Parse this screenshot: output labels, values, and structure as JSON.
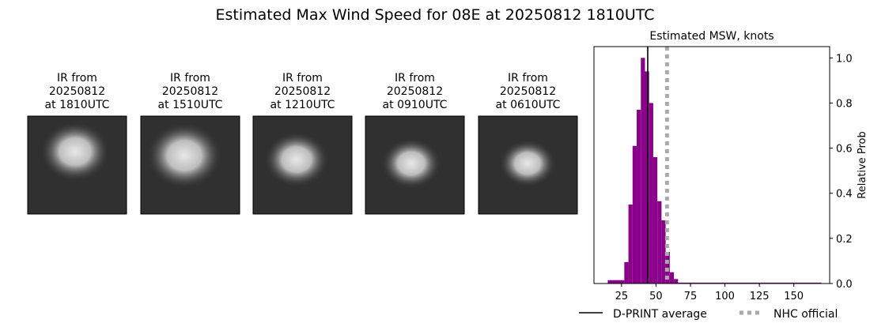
{
  "title": "Estimated Max Wind Speed for 08E at 20250812 1810UTC",
  "panels": [
    {
      "lines": [
        "IR from",
        "20250812",
        "at 1810UTC"
      ]
    },
    {
      "lines": [
        "IR from",
        "20250812",
        "at 1510UTC"
      ]
    },
    {
      "lines": [
        "IR from",
        "20250812",
        "at 1210UTC"
      ]
    },
    {
      "lines": [
        "IR from",
        "20250812",
        "at 0910UTC"
      ]
    },
    {
      "lines": [
        "IR from",
        "20250812",
        "at 0610UTC"
      ]
    }
  ],
  "chart_data": {
    "type": "histogram",
    "title": "Estimated MSW, knots",
    "ylabel": "Relative Prob",
    "bins": [
      15,
      27,
      30,
      33,
      36,
      39,
      42,
      45,
      48,
      51,
      54,
      57,
      60,
      63,
      66,
      170
    ],
    "values": [
      0.015,
      0.095,
      0.35,
      0.61,
      0.77,
      1.0,
      0.94,
      0.8,
      0.56,
      0.365,
      0.28,
      0.14,
      0.05,
      0.02,
      0.004
    ],
    "color": "#8b008b",
    "xlim": [
      5,
      176
    ],
    "xticks": [
      25,
      50,
      75,
      100,
      125,
      150
    ],
    "ylim": [
      0,
      1.05
    ],
    "yticks": [
      {
        "value": 0,
        "label": "0.0"
      },
      {
        "value": 0.2,
        "label": "0.2"
      },
      {
        "value": 0.4,
        "label": "0.4"
      },
      {
        "value": 0.6,
        "label": "0.6"
      },
      {
        "value": 0.8,
        "label": "0.8"
      },
      {
        "value": 1,
        "label": "1.0"
      }
    ],
    "reference_lines": [
      {
        "name": "D-PRINT average",
        "value": 44,
        "color": "#000000",
        "style": "solid"
      },
      {
        "name": "NHC official",
        "value": 58,
        "color": "#aaaaaa",
        "style": "dotted"
      }
    ]
  }
}
